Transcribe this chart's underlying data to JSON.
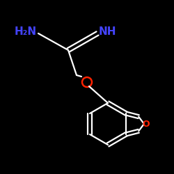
{
  "background_color": "#000000",
  "line_color": "#ffffff",
  "blue_color": "#4444ff",
  "red_color": "#ff2200",
  "line_width": 1.6,
  "figsize": [
    2.5,
    2.5
  ],
  "dpi": 100,
  "label_h2n": "H₂N",
  "label_nh": "NH",
  "label_o": "O"
}
